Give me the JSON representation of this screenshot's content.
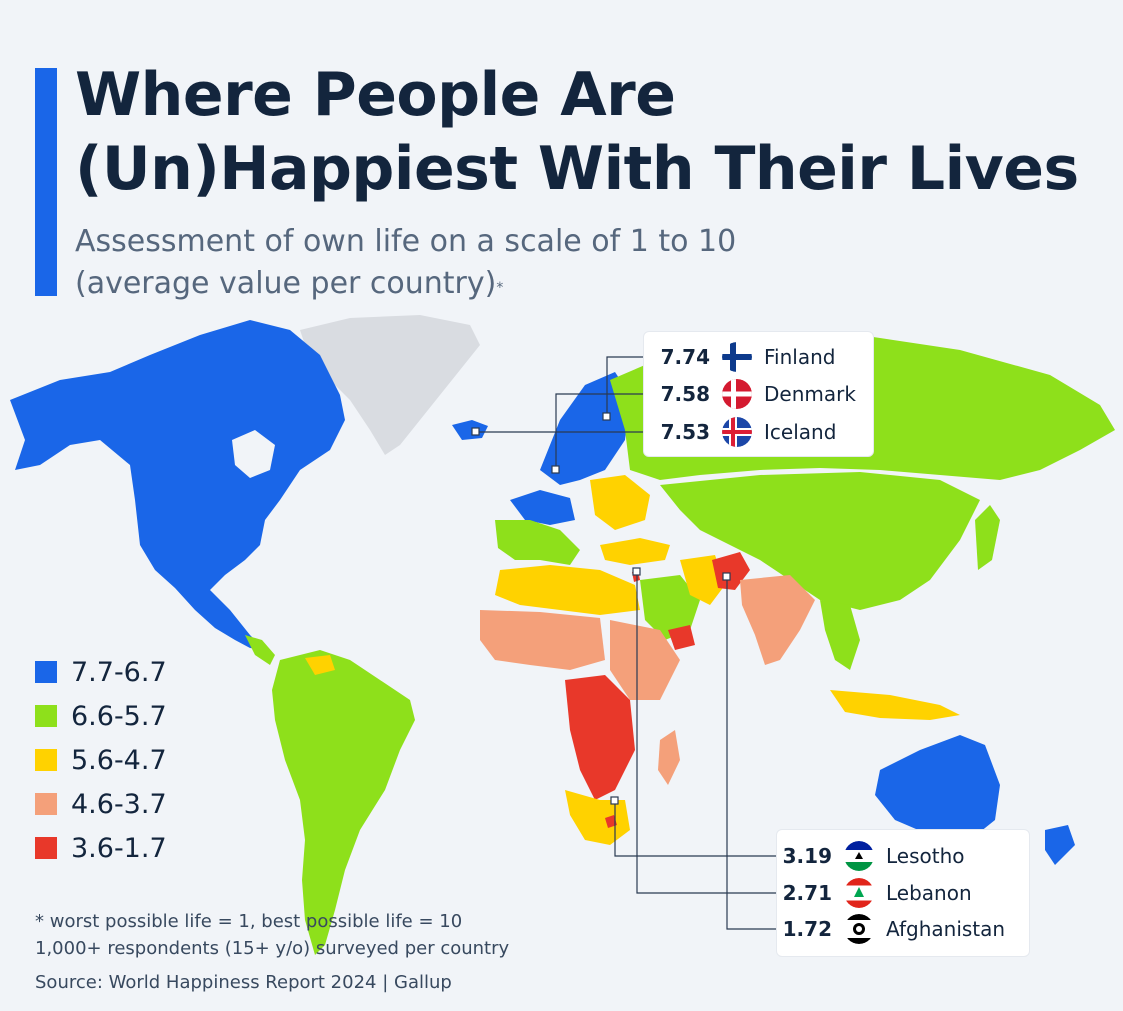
{
  "title": {
    "line1": "Where People Are",
    "line2": "(Un)Happiest With Their Lives"
  },
  "subtitle": {
    "line1": "Assessment of own life on a scale of 1 to 10",
    "line2": "(average value per country)",
    "marker": "*"
  },
  "colors": {
    "accent": "#1a66e8",
    "background": "#f1f4f8",
    "no_data": "#d9dce1",
    "bin1": "#1a66e8",
    "bin2": "#8ee01b",
    "bin3": "#ffd200",
    "bin4": "#f4a07a",
    "bin5": "#e8382a"
  },
  "legend": [
    {
      "label": "7.7-6.7",
      "color": "#1a66e8"
    },
    {
      "label": "6.6-5.7",
      "color": "#8ee01b"
    },
    {
      "label": "5.6-4.7",
      "color": "#ffd200"
    },
    {
      "label": "4.6-3.7",
      "color": "#f4a07a"
    },
    {
      "label": "3.6-1.7",
      "color": "#e8382a"
    }
  ],
  "top_countries": [
    {
      "value": "7.74",
      "country": "Finland",
      "flag": "finland-flag-icon"
    },
    {
      "value": "7.58",
      "country": "Denmark",
      "flag": "denmark-flag-icon"
    },
    {
      "value": "7.53",
      "country": "Iceland",
      "flag": "iceland-flag-icon"
    }
  ],
  "bottom_countries": [
    {
      "value": "3.19",
      "country": "Lesotho",
      "flag": "lesotho-flag-icon"
    },
    {
      "value": "2.71",
      "country": "Lebanon",
      "flag": "lebanon-flag-icon"
    },
    {
      "value": "1.72",
      "country": "Afghanistan",
      "flag": "afghanistan-flag-icon"
    }
  ],
  "footnote": {
    "line1": "* worst possible life = 1, best possible life = 10",
    "line2": "1,000+ respondents (15+ y/o) surveyed per country"
  },
  "source": "Source: World Happiness Report 2024 | Gallup"
}
